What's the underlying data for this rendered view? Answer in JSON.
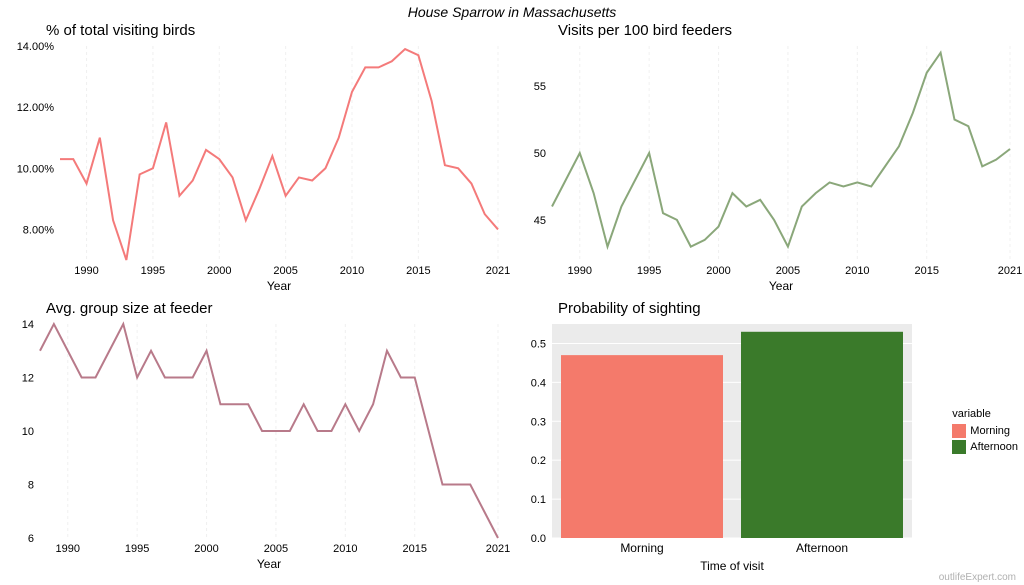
{
  "figure_title": "House Sparrow in Massachusetts",
  "watermark": "outlifeExpert.com",
  "panels": {
    "percent": {
      "title": "% of total visiting birds",
      "type": "line",
      "xlabel": "Year",
      "xlim": [
        1988,
        2021
      ],
      "ylim": [
        7,
        14
      ],
      "xticks": [
        1990,
        1995,
        2000,
        2005,
        2010,
        2015,
        2021
      ],
      "yticks": [
        8,
        10,
        12,
        14
      ],
      "ytick_labels": [
        "8.00%",
        "10.00%",
        "12.00%",
        "14.00%"
      ],
      "grid_color": "#f0f0f0",
      "grid_dash": "3,3",
      "line_color": "#f47a7a",
      "line_width": 2,
      "x": [
        1988,
        1989,
        1990,
        1991,
        1992,
        1993,
        1994,
        1995,
        1996,
        1997,
        1998,
        1999,
        2000,
        2001,
        2002,
        2003,
        2004,
        2005,
        2006,
        2007,
        2008,
        2009,
        2010,
        2011,
        2012,
        2013,
        2014,
        2015,
        2016,
        2017,
        2018,
        2019,
        2020,
        2021
      ],
      "y": [
        10.3,
        10.3,
        9.5,
        11.0,
        8.3,
        7.0,
        9.8,
        10.0,
        11.5,
        9.1,
        9.6,
        10.6,
        10.3,
        9.7,
        8.3,
        9.3,
        10.4,
        9.1,
        9.7,
        9.6,
        10.0,
        11.0,
        12.5,
        13.3,
        13.3,
        13.5,
        13.9,
        13.7,
        12.2,
        10.1,
        10.0,
        9.5,
        8.5,
        8.0
      ]
    },
    "visits": {
      "title": "Visits per 100 bird feeders",
      "type": "line",
      "xlabel": "Year",
      "xlim": [
        1988,
        2021
      ],
      "ylim": [
        42,
        58
      ],
      "xticks": [
        1990,
        1995,
        2000,
        2005,
        2010,
        2015,
        2021
      ],
      "yticks": [
        45,
        50,
        55
      ],
      "ytick_labels": [
        "45",
        "50",
        "55"
      ],
      "grid_color": "#f0f0f0",
      "grid_dash": "3,3",
      "line_color": "#8aa77a",
      "line_width": 2,
      "x": [
        1988,
        1989,
        1990,
        1991,
        1992,
        1993,
        1994,
        1995,
        1996,
        1997,
        1998,
        1999,
        2000,
        2001,
        2002,
        2003,
        2004,
        2005,
        2006,
        2007,
        2008,
        2009,
        2010,
        2011,
        2012,
        2013,
        2014,
        2015,
        2016,
        2017,
        2018,
        2019,
        2020,
        2021
      ],
      "y": [
        46.0,
        48.0,
        50.0,
        47.0,
        43.0,
        46.0,
        48.0,
        50.0,
        45.5,
        45.0,
        43.0,
        43.5,
        44.5,
        47.0,
        46.0,
        46.5,
        45.0,
        43.0,
        46.0,
        47.0,
        47.8,
        47.5,
        47.8,
        47.5,
        49.0,
        50.5,
        53.0,
        56.0,
        57.5,
        52.5,
        52.0,
        49.0,
        49.5,
        50.3
      ]
    },
    "groupsize": {
      "title": "Avg. group size at feeder",
      "type": "line",
      "xlabel": "Year",
      "xlim": [
        1988,
        2021
      ],
      "ylim": [
        6,
        14
      ],
      "xticks": [
        1990,
        1995,
        2000,
        2005,
        2010,
        2015,
        2021
      ],
      "yticks": [
        6,
        8,
        10,
        12,
        14
      ],
      "ytick_labels": [
        "6",
        "8",
        "10",
        "12",
        "14"
      ],
      "grid_color": "#f0f0f0",
      "grid_dash": "3,3",
      "line_color": "#b87a8a",
      "line_width": 2,
      "x": [
        1988,
        1989,
        1990,
        1991,
        1992,
        1993,
        1994,
        1995,
        1996,
        1997,
        1998,
        1999,
        2000,
        2001,
        2002,
        2003,
        2004,
        2005,
        2006,
        2007,
        2008,
        2009,
        2010,
        2011,
        2012,
        2013,
        2014,
        2015,
        2016,
        2017,
        2018,
        2019,
        2020,
        2021
      ],
      "y": [
        13,
        14,
        13,
        12,
        12,
        13,
        14,
        12,
        13,
        12,
        12,
        12,
        13,
        11,
        11,
        11,
        10,
        10,
        10,
        11,
        10,
        10,
        11,
        10,
        11,
        13,
        12,
        12,
        10,
        8,
        8,
        8,
        7,
        6
      ]
    },
    "probability": {
      "title": "Probability of sighting",
      "type": "bar",
      "xlabel": "Time of visit",
      "ylim": [
        0,
        0.55
      ],
      "yticks": [
        0.0,
        0.1,
        0.2,
        0.3,
        0.4,
        0.5
      ],
      "ytick_labels": [
        "0.0",
        "0.1",
        "0.2",
        "0.3",
        "0.4",
        "0.5"
      ],
      "categories": [
        "Morning",
        "Afternoon"
      ],
      "values": [
        0.47,
        0.53
      ],
      "bar_colors": [
        "#f47a6b",
        "#3a7a2a"
      ],
      "bar_width": 0.9,
      "panel_bg": "#ebebeb",
      "grid_color": "#ffffff",
      "legend_title": "variable",
      "legend_items": [
        {
          "label": "Morning",
          "color": "#f47a6b"
        },
        {
          "label": "Afternoon",
          "color": "#3a7a2a"
        }
      ]
    }
  }
}
